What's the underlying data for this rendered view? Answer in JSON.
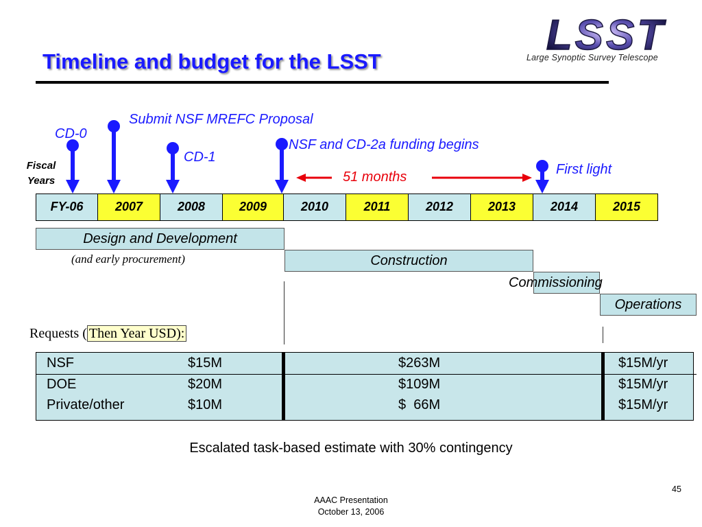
{
  "slide": {
    "title": "Timeline and budget for the LSST",
    "logo_text": "LSST",
    "logo_subtitle": "Large Synoptic Survey Telescope",
    "fiscal_years_label_line1": "Fiscal",
    "fiscal_years_label_line2": "Years"
  },
  "milestones": {
    "cd0": "CD-0",
    "submit_nsf": "Submit NSF MREFC Proposal",
    "cd1": "CD-1",
    "nsf_cd2a": "NSF and CD-2a funding begins",
    "first_light": "First light",
    "span_label": "51 months"
  },
  "years": [
    "FY-06",
    "2007",
    "2008",
    "2009",
    "2010",
    "2011",
    "2012",
    "2013",
    "2014",
    "2015"
  ],
  "phases": {
    "design": "Design and Development",
    "design_sub": "(and early procurement)",
    "construction": "Construction",
    "commissioning": "Commissioning",
    "operations": "Operations"
  },
  "requests": {
    "label_prefix": "Requests (",
    "label_highlight": "Then Year USD):",
    "rows": [
      {
        "source": "NSF",
        "early": "$15M",
        "construction": "$263M",
        "operations": "$15M/yr"
      },
      {
        "source": "DOE",
        "early": "$20M",
        "construction": "$109M",
        "operations": "$15M/yr"
      },
      {
        "source": "Private/other",
        "early": "$10M",
        "construction": "$  66M",
        "operations": "$15M/yr"
      }
    ]
  },
  "footer": {
    "estimate_note": "Escalated task-based estimate with 30% contingency",
    "presentation": "AAAC Presentation",
    "date": "October 13, 2006",
    "page_number": "45"
  },
  "colors": {
    "title_blue": "#1a1aff",
    "accent_red": "#e8000b",
    "cell_cyan": "#c8e8ec",
    "cell_yellow": "#fbff33"
  }
}
